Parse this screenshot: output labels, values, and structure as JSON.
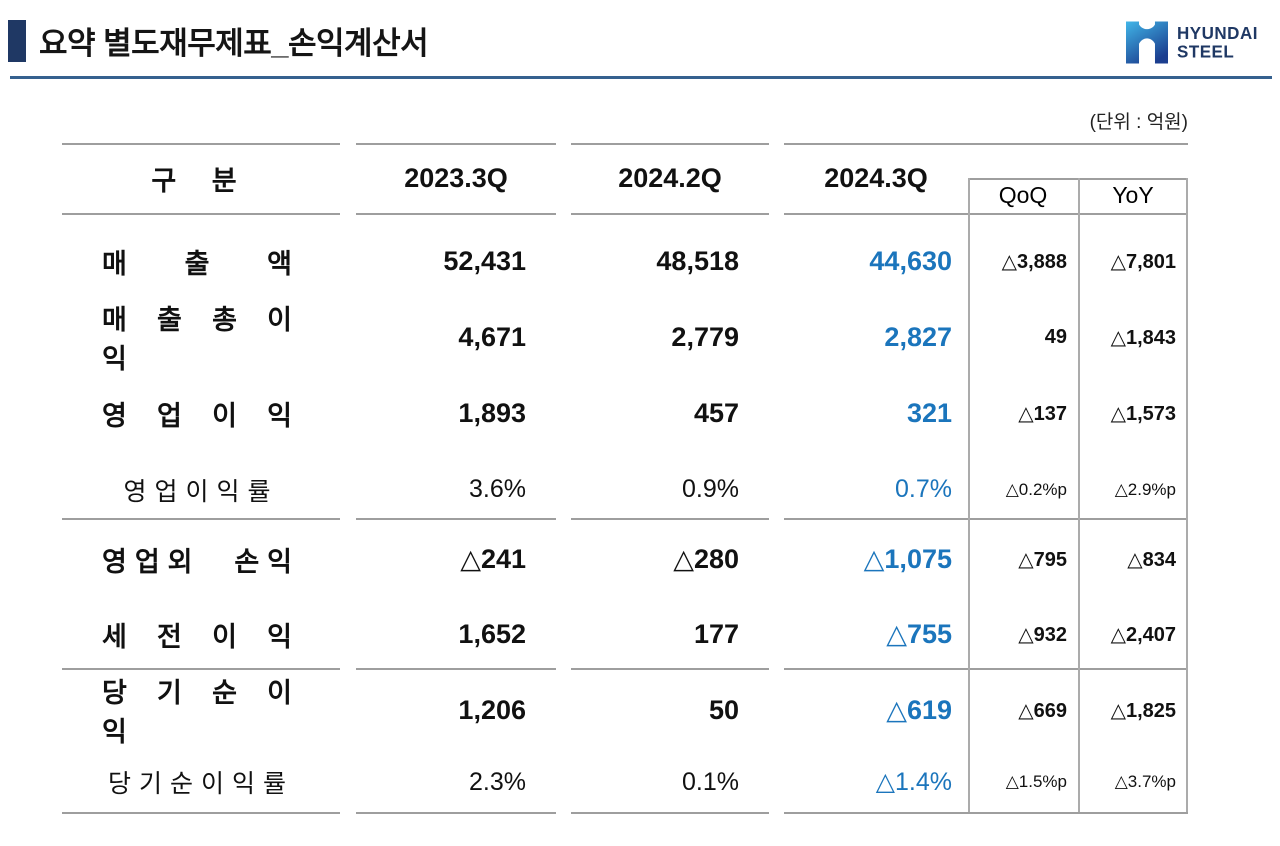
{
  "header": {
    "title": "요약 별도재무제표_손익계산서",
    "logo_line1": "HYUNDAI",
    "logo_line2": "STEEL"
  },
  "table": {
    "unit_label": "(단위 : 억원)",
    "columns": {
      "category": "구 분",
      "q1": "2023.3Q",
      "q2": "2024.2Q",
      "q3": "2024.3Q",
      "qoq": "QoQ",
      "yoy": "YoY"
    },
    "rows": [
      {
        "type": "bold",
        "label": "매 출 액",
        "q1": "52,431",
        "q2": "48,518",
        "q3": "44,630",
        "qoq": "△3,888",
        "yoy": "△7,801"
      },
      {
        "type": "bold",
        "label": "매 출 총 이 익",
        "q1": "4,671",
        "q2": "2,779",
        "q3": "2,827",
        "qoq": "49",
        "yoy": "△1,843"
      },
      {
        "type": "bold",
        "label": "영 업 이 익",
        "q1": "1,893",
        "q2": "457",
        "q3": "321",
        "qoq": "△137",
        "yoy": "△1,573"
      },
      {
        "type": "ratio",
        "label": "영업이익률",
        "q1": "3.6%",
        "q2": "0.9%",
        "q3": "0.7%",
        "qoq": "△0.2%p",
        "yoy": "△2.9%p"
      },
      {
        "type": "bold",
        "label": "영업외 손익",
        "q1": "△241",
        "q2": "△280",
        "q3": "△1,075",
        "qoq": "△795",
        "yoy": "△834"
      },
      {
        "type": "bold",
        "label": "세 전 이 익",
        "q1": "1,652",
        "q2": "177",
        "q3": "△755",
        "qoq": "△932",
        "yoy": "△2,407"
      },
      {
        "type": "bold",
        "label": "당 기 순 이 익",
        "q1": "1,206",
        "q2": "50",
        "q3": "△619",
        "qoq": "△669",
        "yoy": "△1,825"
      },
      {
        "type": "ratio",
        "label": "당기순이익률",
        "q1": "2.3%",
        "q2": "0.1%",
        "q3": "△1.4%",
        "qoq": "△1.5%p",
        "yoy": "△3.7%p"
      }
    ]
  },
  "colors": {
    "accent_blue": "#1B75BC",
    "navy": "#1F3864",
    "rule_blue": "#35618F",
    "line_gray": "#9E9E9E",
    "logo_gradient_top": "#41B6E8",
    "logo_gradient_bottom": "#1B3E8F"
  }
}
